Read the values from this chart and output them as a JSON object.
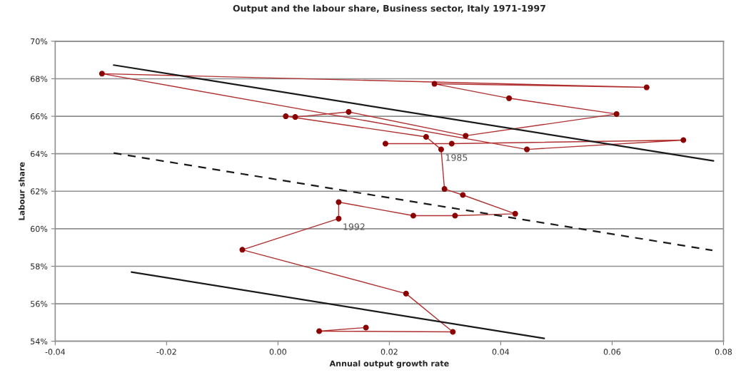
{
  "chart_data": {
    "type": "line",
    "title": "Output and the labour share, Business sector, Italy 1971-1997",
    "xlabel": "Annual output growth rate",
    "ylabel": "Labour share",
    "xlim": [
      -0.04,
      0.08
    ],
    "xticks": [
      {
        "value": -0.04,
        "label": "-0.04"
      },
      {
        "value": -0.02,
        "label": "-0.02"
      },
      {
        "value": 0,
        "label": "0.00"
      },
      {
        "value": 0.02,
        "label": "0.02"
      },
      {
        "value": 0.04,
        "label": "0.04"
      },
      {
        "value": 0.06,
        "label": "0.06"
      },
      {
        "value": 0.08,
        "label": "0.08"
      }
    ],
    "ylim": [
      54,
      70
    ],
    "yticks": [
      {
        "value": 54,
        "label": "54%"
      },
      {
        "value": 56,
        "label": "56%"
      },
      {
        "value": 58,
        "label": "58%"
      },
      {
        "value": 60,
        "label": "60%"
      },
      {
        "value": 62,
        "label": "62%"
      },
      {
        "value": 64,
        "label": "64%"
      },
      {
        "value": 66,
        "label": "66%"
      },
      {
        "value": 68,
        "label": "68%"
      },
      {
        "value": 70,
        "label": "70%"
      }
    ],
    "grid": "y",
    "series": [
      {
        "color": "#b03030",
        "marker": "circle",
        "line_style": "solid",
        "x": [
          0.0193,
          0.0312,
          0.0728,
          0.0447,
          -0.0316,
          0.0662,
          0.0281,
          0.0415,
          0.0608,
          0.0337,
          0.0127,
          0.0031,
          0.0014,
          0.0266,
          0.0293,
          0.0299,
          0.0332,
          0.0426,
          0.0318,
          0.0243,
          0.0109,
          0.0109,
          -0.0064,
          0.023,
          0.0314,
          0.0074,
          0.0158
        ],
        "values": [
          64.54,
          64.54,
          64.73,
          64.23,
          68.27,
          67.54,
          67.73,
          66.96,
          66.12,
          64.96,
          66.23,
          65.96,
          66.0,
          64.9,
          64.23,
          62.12,
          61.8,
          60.8,
          60.7,
          60.7,
          61.42,
          60.54,
          58.88,
          56.54,
          54.5,
          54.54,
          54.73
        ]
      },
      {
        "color": "#1a1a1a",
        "marker": "none",
        "line_style": "solid",
        "x": [
          -0.0295,
          0.0782
        ],
        "values": [
          68.73,
          63.62
        ]
      },
      {
        "color": "#1a1a1a",
        "marker": "none",
        "line_style": "dashed",
        "x": [
          -0.0295,
          0.078
        ],
        "values": [
          64.04,
          58.85
        ]
      },
      {
        "color": "#1a1a1a",
        "marker": "none",
        "line_style": "solid",
        "x": [
          -0.0263,
          0.0478
        ],
        "values": [
          57.69,
          54.15
        ]
      }
    ],
    "annotations": [
      {
        "text": "1985",
        "x": 0.0293,
        "y": 64.23
      },
      {
        "text": "1992",
        "x": 0.0109,
        "y": 60.54
      }
    ]
  }
}
